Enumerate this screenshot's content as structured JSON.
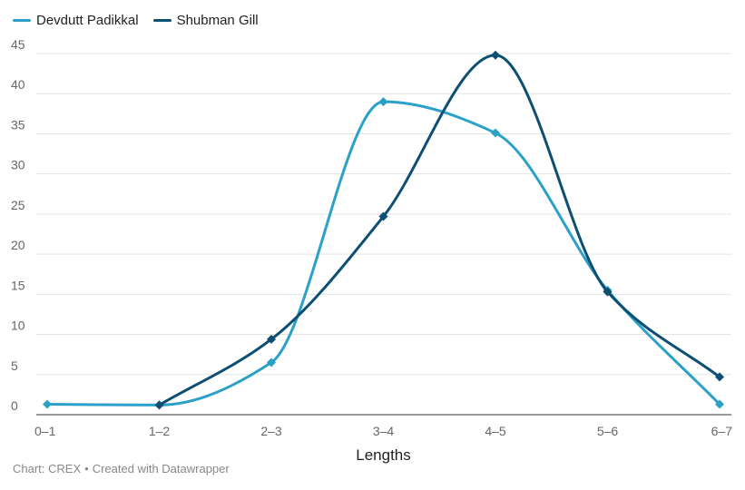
{
  "chart_data": {
    "type": "line",
    "title": "",
    "xlabel": "Lengths",
    "ylabel": "",
    "categories": [
      "0–1",
      "1–2",
      "2–3",
      "3–4",
      "4–5",
      "5–6",
      "6–7"
    ],
    "ylim": [
      0,
      45
    ],
    "yticks": [
      0,
      5,
      10,
      15,
      20,
      25,
      30,
      35,
      40,
      45
    ],
    "grid": true,
    "legend_position": "top-left",
    "series": [
      {
        "name": "Devdutt Padikkal",
        "color": "#2ba0c8",
        "marker": "diamond",
        "values": [
          1.3,
          1.2,
          6.5,
          39.0,
          35.1,
          15.5,
          1.3
        ]
      },
      {
        "name": "Shubman Gill",
        "color": "#0c4f73",
        "marker": "diamond",
        "values": [
          null,
          1.2,
          9.4,
          24.7,
          44.8,
          15.3,
          4.7
        ]
      }
    ]
  },
  "footer": {
    "source": "Chart: CREX",
    "separator": "•",
    "credit": "Created with Datawrapper"
  }
}
